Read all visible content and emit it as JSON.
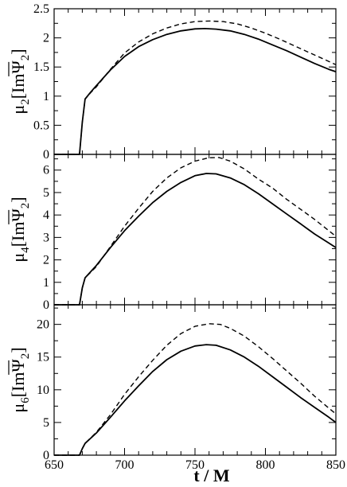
{
  "figure": {
    "xlabel": "t / M"
  },
  "chart_data": [
    {
      "type": "line",
      "ylabel": {
        "sym": "μ",
        "sub": "2",
        "expr": "[ImΨ",
        "sub2": "2",
        "close": "]"
      },
      "xlim": [
        650,
        850
      ],
      "ylim": [
        0,
        2.5
      ],
      "x_ticks": [
        650,
        700,
        750,
        800,
        850
      ],
      "y_ticks": [
        0,
        0.5,
        1,
        1.5,
        2,
        2.5
      ],
      "y_tick_labels": [
        "0",
        "0.5",
        "1",
        "1.5",
        "2",
        "2.5"
      ],
      "grid": false,
      "series": [
        {
          "style": "solid",
          "x": [
            650,
            668,
            670,
            672,
            676,
            680,
            690,
            700,
            710,
            720,
            730,
            740,
            750,
            757,
            765,
            775,
            785,
            795,
            805,
            815,
            825,
            835,
            845,
            850
          ],
          "y": [
            0,
            0,
            0.55,
            0.95,
            1.07,
            1.18,
            1.45,
            1.68,
            1.85,
            1.97,
            2.06,
            2.12,
            2.155,
            2.16,
            2.15,
            2.12,
            2.06,
            1.98,
            1.88,
            1.78,
            1.67,
            1.56,
            1.46,
            1.42
          ]
        },
        {
          "style": "dashed",
          "x": [
            650,
            668,
            670,
            672,
            676,
            680,
            690,
            700,
            710,
            720,
            730,
            740,
            750,
            760,
            770,
            780,
            790,
            800,
            810,
            820,
            830,
            840,
            850
          ],
          "y": [
            0,
            0,
            0.55,
            0.95,
            1.06,
            1.16,
            1.46,
            1.74,
            1.93,
            2.07,
            2.17,
            2.24,
            2.28,
            2.29,
            2.28,
            2.24,
            2.17,
            2.08,
            1.98,
            1.87,
            1.76,
            1.65,
            1.54
          ]
        }
      ]
    },
    {
      "type": "line",
      "ylabel": {
        "sym": "μ",
        "sub": "4",
        "expr": "[ImΨ",
        "sub2": "2",
        "close": "]"
      },
      "xlim": [
        650,
        850
      ],
      "ylim": [
        0,
        6.7
      ],
      "x_ticks": [
        650,
        700,
        750,
        800,
        850
      ],
      "y_ticks": [
        0,
        1,
        2,
        3,
        4,
        5,
        6
      ],
      "y_tick_labels": [
        "0",
        "1",
        "2",
        "3",
        "4",
        "5",
        "6"
      ],
      "grid": false,
      "series": [
        {
          "style": "solid",
          "x": [
            650,
            668,
            670,
            672,
            680,
            690,
            700,
            710,
            720,
            730,
            740,
            750,
            758,
            765,
            775,
            785,
            795,
            805,
            815,
            825,
            835,
            845,
            850
          ],
          "y": [
            0,
            0,
            0.75,
            1.2,
            1.75,
            2.55,
            3.3,
            3.95,
            4.55,
            5.05,
            5.45,
            5.75,
            5.85,
            5.83,
            5.65,
            5.35,
            4.95,
            4.5,
            4.05,
            3.6,
            3.15,
            2.75,
            2.55
          ]
        },
        {
          "style": "dashed",
          "x": [
            650,
            668,
            670,
            672,
            680,
            690,
            700,
            710,
            720,
            730,
            740,
            750,
            760,
            767,
            775,
            785,
            795,
            805,
            815,
            825,
            835,
            845,
            850
          ],
          "y": [
            0,
            0,
            0.75,
            1.2,
            1.7,
            2.6,
            3.5,
            4.3,
            5.05,
            5.65,
            6.1,
            6.4,
            6.55,
            6.56,
            6.4,
            6.05,
            5.6,
            5.2,
            4.7,
            4.25,
            3.8,
            3.3,
            3.05
          ]
        }
      ]
    },
    {
      "type": "line",
      "ylabel": {
        "sym": "μ",
        "sub": "6",
        "expr": "[ImΨ",
        "sub2": "2",
        "close": "]"
      },
      "xlim": [
        650,
        850
      ],
      "ylim": [
        0,
        23
      ],
      "x_ticks": [
        650,
        700,
        750,
        800,
        850
      ],
      "x_tick_labels": [
        "650",
        "700",
        "750",
        "800",
        "850"
      ],
      "y_ticks": [
        0,
        5,
        10,
        15,
        20
      ],
      "y_tick_labels": [
        "0",
        "5",
        "10",
        "15",
        "20"
      ],
      "grid": false,
      "series": [
        {
          "style": "solid",
          "x": [
            650,
            668,
            670,
            672,
            680,
            690,
            700,
            710,
            720,
            730,
            740,
            750,
            758,
            765,
            775,
            785,
            795,
            805,
            815,
            825,
            835,
            845,
            850
          ],
          "y": [
            0,
            0,
            1.0,
            1.8,
            3.4,
            5.8,
            8.3,
            10.6,
            12.8,
            14.6,
            15.9,
            16.7,
            16.9,
            16.8,
            16.1,
            15.0,
            13.6,
            12.0,
            10.4,
            8.8,
            7.3,
            5.8,
            5.0
          ]
        },
        {
          "style": "dashed",
          "x": [
            650,
            668,
            670,
            672,
            680,
            690,
            700,
            710,
            720,
            730,
            740,
            750,
            760,
            768,
            775,
            785,
            795,
            805,
            815,
            825,
            835,
            845,
            850
          ],
          "y": [
            0,
            0,
            1.0,
            1.8,
            3.5,
            6.2,
            9.3,
            12.0,
            14.5,
            16.8,
            18.6,
            19.7,
            20.1,
            20.0,
            19.4,
            18.2,
            16.6,
            14.8,
            12.9,
            11.0,
            9.0,
            7.2,
            6.3
          ]
        }
      ]
    }
  ]
}
